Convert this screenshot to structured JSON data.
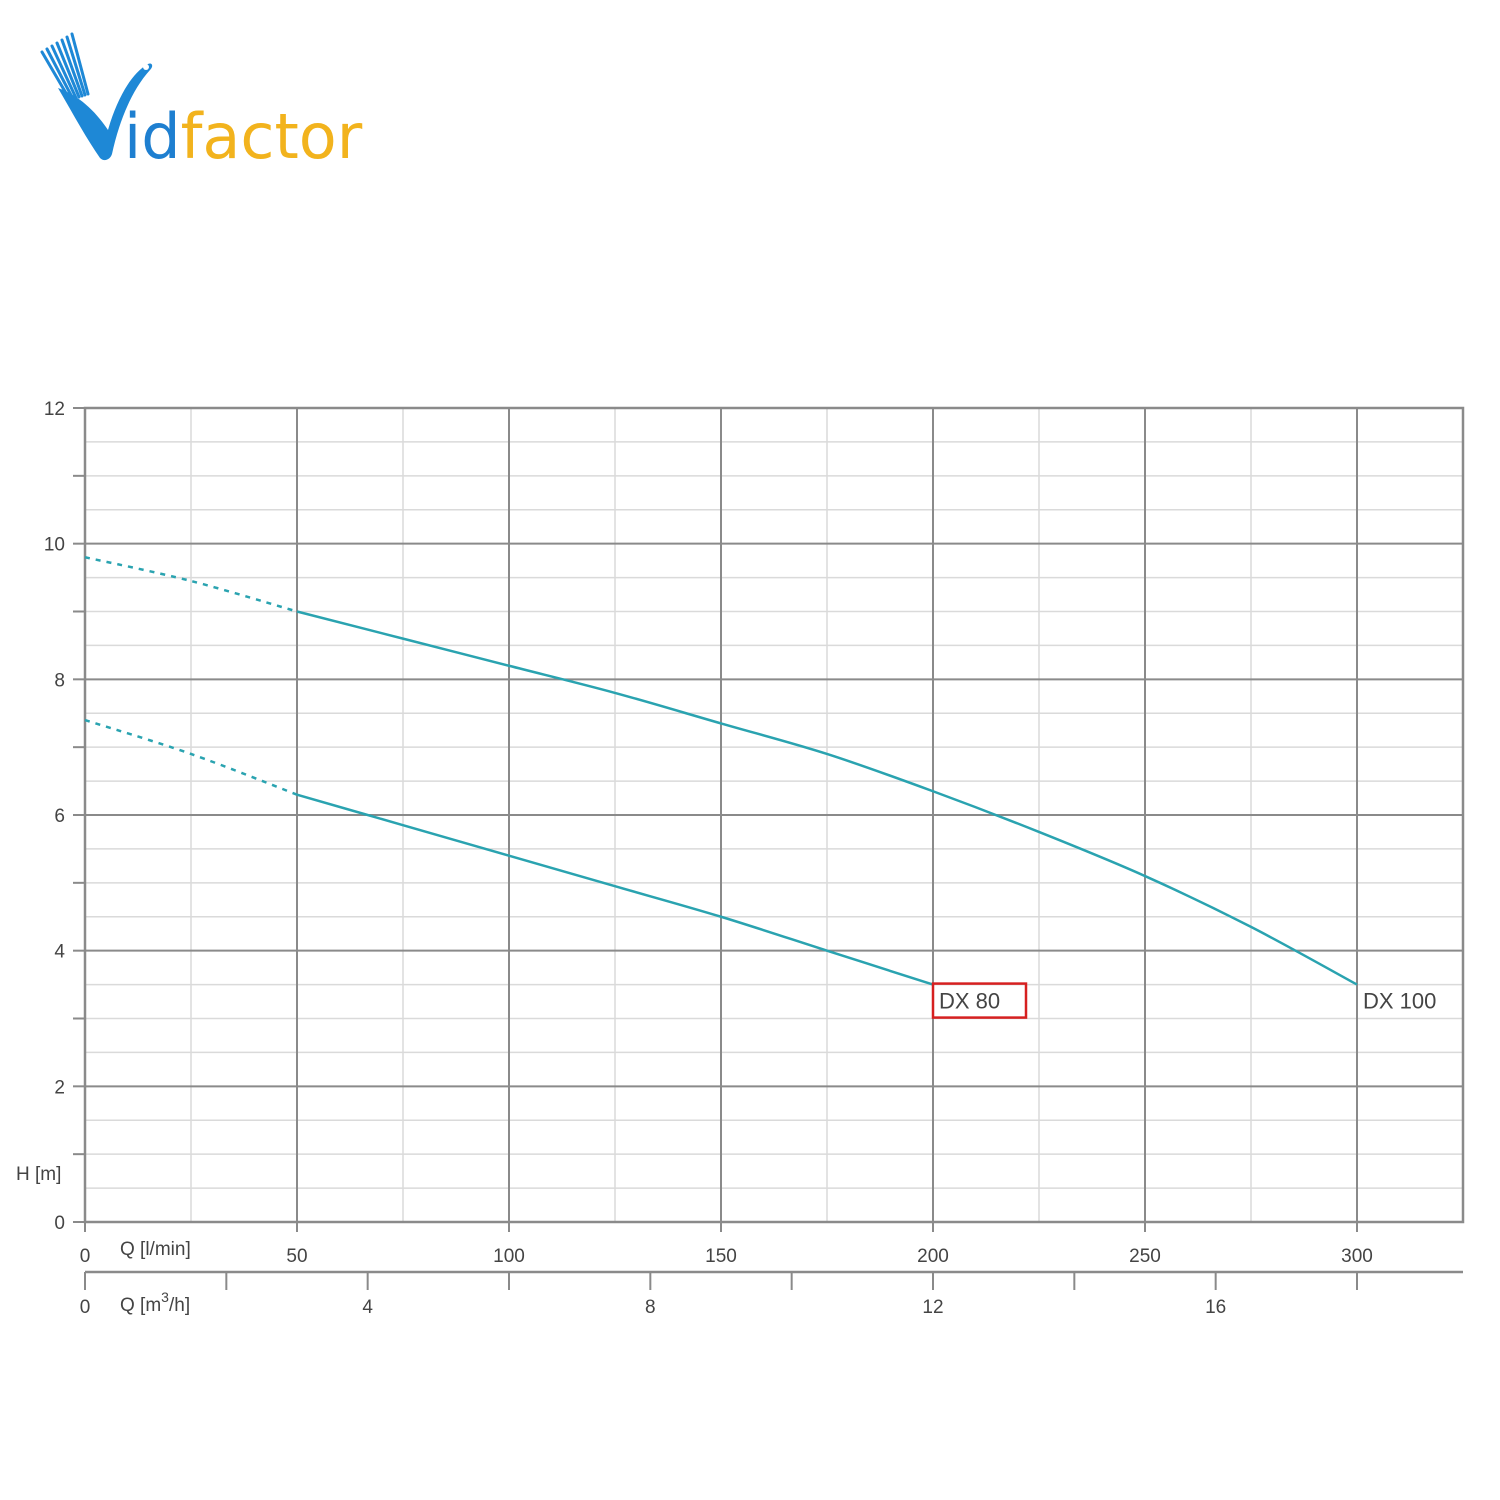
{
  "logo": {
    "text": "Vidfactor",
    "colors": {
      "v": "#1e88d6",
      "id": "#1e7fd0",
      "factor": "#f2b31d"
    }
  },
  "colors": {
    "curve": "#2aa3b0",
    "grid_major": "#8a8a8a",
    "grid_minor": "#dadada",
    "frame": "#8a8a8a",
    "highlight_box": "#d62020",
    "text": "#444444"
  },
  "chart_data": {
    "type": "line",
    "xlim": [
      0,
      325
    ],
    "ylim": [
      0,
      12
    ],
    "grid": true,
    "y_axis": {
      "label": "H [m]",
      "ticks": [
        0,
        2,
        4,
        6,
        8,
        10,
        12
      ],
      "tick_labels": [
        "0",
        "2",
        "4",
        "6",
        "8",
        "10",
        "12"
      ]
    },
    "x_axis_primary": {
      "label": "Q [l/min]",
      "ticks": [
        0,
        50,
        100,
        150,
        200,
        250,
        300
      ],
      "tick_labels": [
        "0",
        "50",
        "100",
        "150",
        "200",
        "250",
        "300"
      ]
    },
    "x_axis_secondary": {
      "label_prefix": "Q [m",
      "label_sup": "3",
      "label_suffix": "/h]",
      "ticks": [
        0,
        4,
        8,
        12,
        16
      ],
      "tick_labels": [
        "0",
        "4",
        "8",
        "12",
        "16"
      ],
      "minor_ticks": [
        2,
        6,
        10,
        14,
        18
      ]
    },
    "series": [
      {
        "name": "DX 80",
        "dashed_points": [
          [
            0,
            7.4
          ],
          [
            25,
            6.9
          ],
          [
            50,
            6.3
          ]
        ],
        "solid_points": [
          [
            50,
            6.3
          ],
          [
            75,
            5.85
          ],
          [
            100,
            5.4
          ],
          [
            125,
            4.95
          ],
          [
            150,
            4.5
          ],
          [
            175,
            4.0
          ],
          [
            200,
            3.5
          ]
        ],
        "highlighted": true
      },
      {
        "name": "DX 100",
        "dashed_points": [
          [
            0,
            9.8
          ],
          [
            25,
            9.45
          ],
          [
            50,
            9.0
          ]
        ],
        "solid_points": [
          [
            50,
            9.0
          ],
          [
            75,
            8.6
          ],
          [
            100,
            8.2
          ],
          [
            125,
            7.8
          ],
          [
            150,
            7.35
          ],
          [
            175,
            6.9
          ],
          [
            200,
            6.35
          ],
          [
            225,
            5.75
          ],
          [
            250,
            5.1
          ],
          [
            275,
            4.35
          ],
          [
            300,
            3.5
          ]
        ],
        "highlighted": false
      }
    ]
  }
}
